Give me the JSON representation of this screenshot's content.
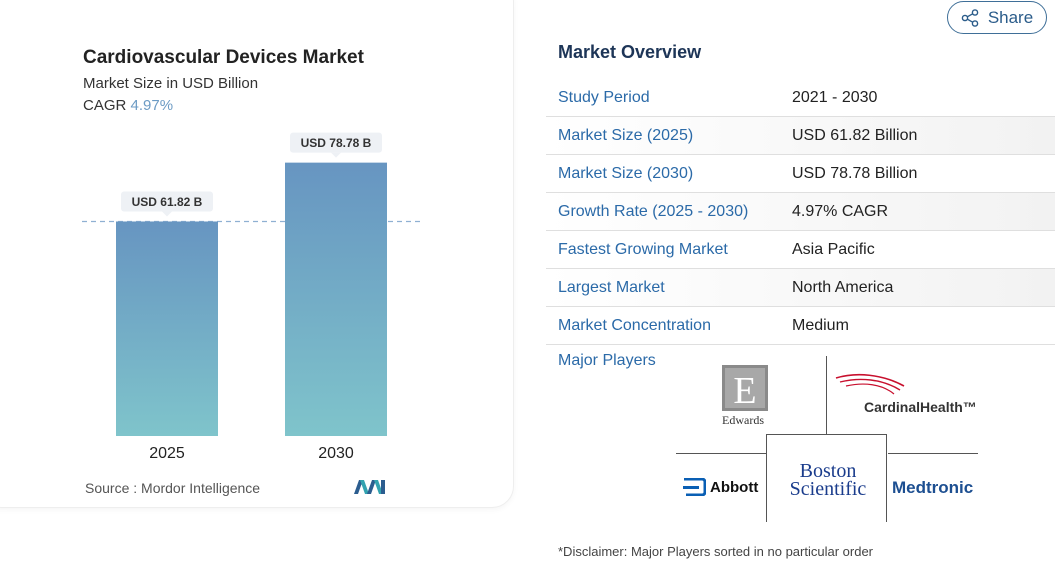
{
  "chart_data": {
    "type": "bar",
    "title": "Cardiovascular Devices Market",
    "subtitle": "Market Size in USD Billion",
    "cagr_label": "CAGR",
    "cagr_value": "4.97%",
    "categories": [
      "2025",
      "2030"
    ],
    "values": [
      61.82,
      78.78
    ],
    "data_labels": [
      "USD 61.82 B",
      "USD 78.78 B"
    ],
    "ylim": [
      0,
      100
    ],
    "reference_line_value": 61.82,
    "grid": false,
    "legend": "none",
    "colors": {
      "bar_top": "#6795c1",
      "bar_bottom": "#7fc4cb",
      "dashed_line": "#8fb0d2",
      "label_bg": "#eef1f5"
    }
  },
  "source": "Source :  Mordor Intelligence",
  "share": {
    "label": "Share",
    "icon": "share-icon"
  },
  "overview": {
    "title": "Market Overview",
    "rows": [
      {
        "label": "Study Period",
        "value": "2021 - 2030"
      },
      {
        "label": "Market Size (2025)",
        "value": "USD 61.82 Billion"
      },
      {
        "label": "Market Size (2030)",
        "value": "USD 78.78 Billion"
      },
      {
        "label": "Growth Rate (2025 - 2030)",
        "value": "4.97% CAGR"
      },
      {
        "label": "Fastest Growing Market",
        "value": "Asia Pacific"
      },
      {
        "label": "Largest Market",
        "value": "North America"
      },
      {
        "label": "Market Concentration",
        "value": "Medium"
      }
    ],
    "major_players_label": "Major Players",
    "players": [
      "Edwards",
      "CardinalHealth™",
      "Abbott",
      "Boston Scientific",
      "Medtronic"
    ]
  },
  "disclaimer": "*Disclaimer: Major Players sorted in no particular order"
}
